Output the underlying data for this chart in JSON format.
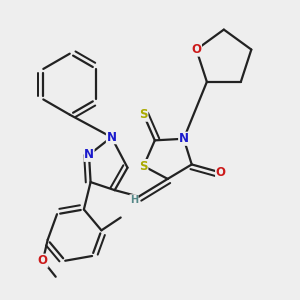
{
  "bg_color": "#eeeeee",
  "bond_color": "#222222",
  "bond_width": 1.6,
  "dbo": 0.015,
  "fs": 8.5,
  "colors": {
    "N": "#1a1acc",
    "S": "#aaaa00",
    "O": "#cc1a1a",
    "H": "#558888",
    "C": "#222222"
  }
}
